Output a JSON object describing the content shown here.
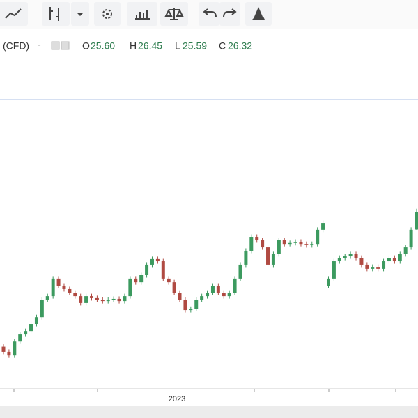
{
  "legend": {
    "symbol": "(CFD)",
    "open_label": "O",
    "open": "25.60",
    "high_label": "H",
    "high": "26.45",
    "low_label": "L",
    "low": "25.59",
    "close_label": "C",
    "close": "26.32"
  },
  "chart_data": {
    "type": "candlestick",
    "up_color": "#3c9a5f",
    "down_color": "#b04a42",
    "ylim": [
      19.16,
      30.87
    ],
    "x_axis_label": "2023",
    "candles": [
      [
        20.8,
        20.9,
        20.49,
        20.59
      ],
      [
        20.59,
        20.69,
        20.34,
        20.44
      ],
      [
        20.44,
        21.11,
        20.34,
        21.01
      ],
      [
        21.01,
        21.4,
        20.91,
        21.3
      ],
      [
        21.3,
        21.54,
        21.2,
        21.44
      ],
      [
        21.44,
        21.83,
        21.34,
        21.73
      ],
      [
        21.73,
        22.11,
        21.63,
        22.01
      ],
      [
        22.01,
        22.83,
        21.91,
        22.73
      ],
      [
        22.73,
        22.97,
        22.63,
        22.87
      ],
      [
        22.87,
        23.69,
        22.77,
        23.59
      ],
      [
        23.59,
        23.69,
        23.2,
        23.3
      ],
      [
        23.3,
        23.4,
        23.06,
        23.16
      ],
      [
        23.16,
        23.26,
        22.91,
        23.01
      ],
      [
        23.01,
        23.11,
        22.77,
        22.87
      ],
      [
        22.87,
        22.97,
        22.49,
        22.59
      ],
      [
        22.59,
        22.97,
        22.49,
        22.87
      ],
      [
        22.87,
        22.97,
        22.69,
        22.79
      ],
      [
        22.79,
        22.89,
        22.63,
        22.73
      ],
      [
        22.73,
        22.83,
        22.57,
        22.67
      ],
      [
        22.67,
        22.83,
        22.57,
        22.73
      ],
      [
        22.73,
        22.86,
        22.63,
        22.76
      ],
      [
        22.76,
        22.86,
        22.57,
        22.67
      ],
      [
        22.67,
        22.97,
        22.57,
        22.87
      ],
      [
        22.87,
        23.69,
        22.77,
        23.59
      ],
      [
        23.59,
        23.69,
        23.34,
        23.44
      ],
      [
        23.44,
        23.83,
        23.34,
        23.73
      ],
      [
        23.73,
        24.26,
        23.63,
        24.16
      ],
      [
        24.16,
        24.49,
        24.06,
        24.39
      ],
      [
        24.39,
        24.49,
        24.2,
        24.3
      ],
      [
        24.3,
        24.4,
        23.49,
        23.59
      ],
      [
        23.59,
        23.69,
        23.34,
        23.44
      ],
      [
        23.44,
        23.54,
        22.91,
        23.01
      ],
      [
        23.01,
        23.11,
        22.63,
        22.73
      ],
      [
        22.73,
        22.83,
        22.2,
        22.3
      ],
      [
        22.3,
        22.45,
        22.2,
        22.35
      ],
      [
        22.35,
        22.83,
        22.25,
        22.73
      ],
      [
        22.73,
        22.97,
        22.63,
        22.87
      ],
      [
        22.87,
        23.11,
        22.77,
        23.01
      ],
      [
        23.01,
        23.4,
        22.91,
        23.3
      ],
      [
        23.3,
        23.4,
        22.91,
        23.01
      ],
      [
        23.01,
        23.11,
        22.77,
        22.87
      ],
      [
        22.87,
        23.11,
        22.77,
        23.01
      ],
      [
        23.01,
        23.69,
        22.91,
        23.59
      ],
      [
        23.59,
        24.26,
        23.49,
        24.16
      ],
      [
        24.16,
        24.83,
        24.06,
        24.73
      ],
      [
        24.73,
        25.4,
        24.63,
        25.3
      ],
      [
        25.3,
        25.4,
        25.06,
        25.16
      ],
      [
        25.16,
        25.26,
        24.77,
        24.87
      ],
      [
        24.87,
        24.97,
        24.06,
        24.16
      ],
      [
        24.16,
        24.69,
        24.06,
        24.59
      ],
      [
        24.59,
        25.26,
        24.49,
        25.16
      ],
      [
        25.16,
        25.26,
        24.91,
        25.01
      ],
      [
        25.01,
        25.15,
        24.91,
        25.05
      ],
      [
        25.05,
        25.2,
        24.95,
        25.1
      ],
      [
        25.1,
        25.2,
        24.91,
        25.01
      ],
      [
        25.01,
        25.11,
        24.86,
        24.96
      ],
      [
        24.96,
        25.11,
        24.86,
        25.01
      ],
      [
        25.01,
        25.69,
        24.91,
        25.59
      ],
      [
        25.59,
        25.97,
        25.49,
        25.87
      ],
      [
        23.3,
        23.69,
        23.2,
        23.59
      ],
      [
        23.59,
        24.4,
        23.49,
        24.3
      ],
      [
        24.3,
        24.54,
        24.2,
        24.44
      ],
      [
        24.44,
        24.6,
        24.34,
        24.5
      ],
      [
        24.5,
        24.69,
        24.4,
        24.59
      ],
      [
        24.59,
        24.69,
        24.34,
        24.44
      ],
      [
        24.44,
        24.54,
        24.06,
        24.16
      ],
      [
        24.16,
        24.26,
        23.89,
        23.99
      ],
      [
        23.99,
        24.17,
        23.89,
        24.07
      ],
      [
        24.07,
        24.17,
        23.89,
        23.99
      ],
      [
        23.99,
        24.4,
        23.89,
        24.3
      ],
      [
        24.3,
        24.54,
        24.2,
        24.44
      ],
      [
        24.44,
        24.54,
        24.2,
        24.3
      ],
      [
        24.3,
        24.69,
        24.2,
        24.59
      ],
      [
        24.59,
        24.97,
        24.49,
        24.87
      ],
      [
        24.87,
        25.69,
        24.77,
        25.59
      ],
      [
        25.6,
        26.45,
        25.59,
        26.32
      ]
    ]
  }
}
